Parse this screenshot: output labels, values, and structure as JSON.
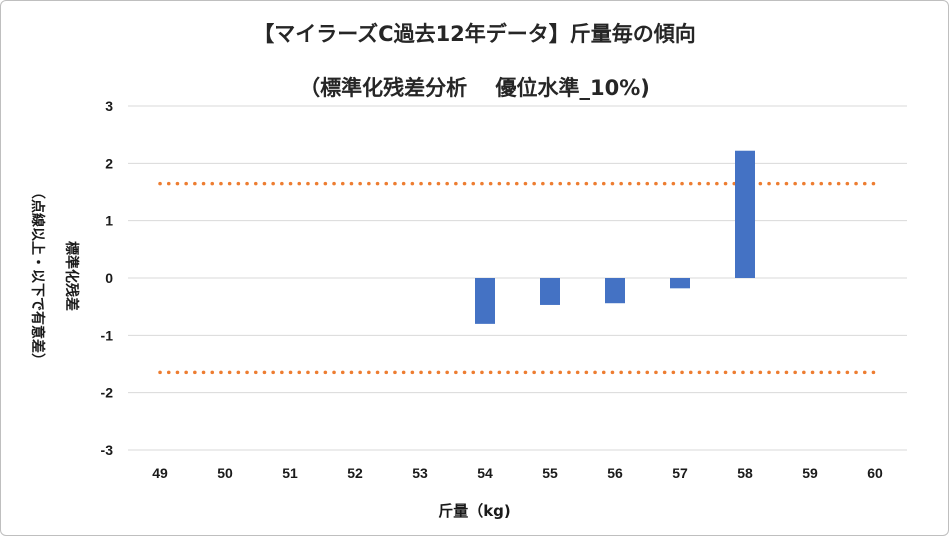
{
  "chart_data": {
    "type": "bar",
    "title": "【マイラーズC過去12年データ】斤量毎の傾向",
    "subtitle": "（標準化残差分析　 優位水準_10%)",
    "xlabel": "斤量（kg)",
    "ylabel_main": "標準化残差",
    "ylabel_note": "（点線以上・以下で有意差）",
    "categories": [
      "49",
      "50",
      "51",
      "52",
      "53",
      "54",
      "55",
      "56",
      "57",
      "58",
      "59",
      "60"
    ],
    "values": [
      null,
      null,
      null,
      null,
      null,
      -0.8,
      -0.47,
      -0.44,
      -0.18,
      2.22,
      null,
      null
    ],
    "ylim": [
      -3,
      3
    ],
    "yticks": [
      3,
      2,
      1,
      0,
      -1,
      -2,
      -3
    ],
    "ytick_labels": [
      "3",
      "2",
      "1",
      "0",
      "-1",
      "-2",
      "-3"
    ],
    "thresholds": [
      1.645,
      -1.645
    ],
    "grid": true,
    "colors": {
      "bar": "#4472c4",
      "threshold": "#ed7d31",
      "grid": "#d9d9d9"
    }
  }
}
